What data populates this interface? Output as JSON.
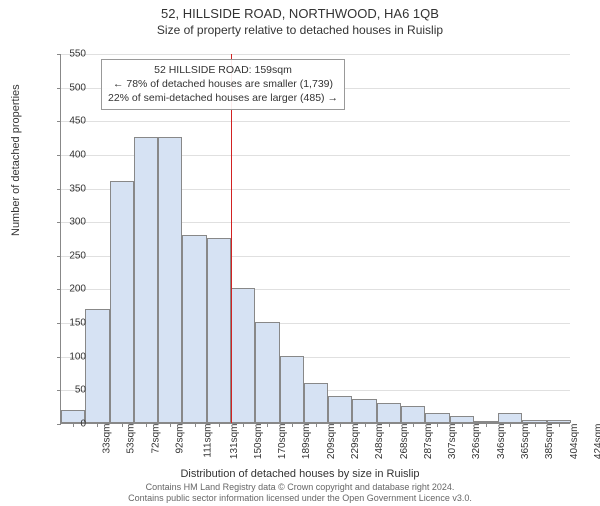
{
  "title": "52, HILLSIDE ROAD, NORTHWOOD, HA6 1QB",
  "subtitle": "Size of property relative to detached houses in Ruislip",
  "chart": {
    "type": "histogram",
    "y_label": "Number of detached properties",
    "x_label": "Distribution of detached houses by size in Ruislip",
    "ylim": [
      0,
      550
    ],
    "ytick_step": 50,
    "bar_fill": "#d6e2f3",
    "bar_border": "#888888",
    "grid_color": "#e0e0e0",
    "background_color": "#ffffff",
    "x_categories": [
      "33sqm",
      "53sqm",
      "72sqm",
      "92sqm",
      "111sqm",
      "131sqm",
      "150sqm",
      "170sqm",
      "189sqm",
      "209sqm",
      "229sqm",
      "248sqm",
      "268sqm",
      "287sqm",
      "307sqm",
      "326sqm",
      "346sqm",
      "365sqm",
      "385sqm",
      "404sqm",
      "424sqm"
    ],
    "values": [
      20,
      170,
      360,
      425,
      425,
      280,
      275,
      200,
      150,
      100,
      60,
      40,
      35,
      30,
      25,
      15,
      10,
      0,
      15,
      5,
      5
    ],
    "reference": {
      "index_position": 7,
      "color": "#d22222",
      "label_property": "52 HILLSIDE ROAD: 159sqm",
      "label_left": "← 78% of detached houses are smaller (1,739)",
      "label_right": "22% of semi-detached houses are larger (485) →"
    },
    "title_fontsize": 13,
    "label_fontsize": 11,
    "tick_fontsize": 10
  },
  "footer": {
    "line1": "Contains HM Land Registry data © Crown copyright and database right 2024.",
    "line2": "Contains public sector information licensed under the Open Government Licence v3.0."
  }
}
